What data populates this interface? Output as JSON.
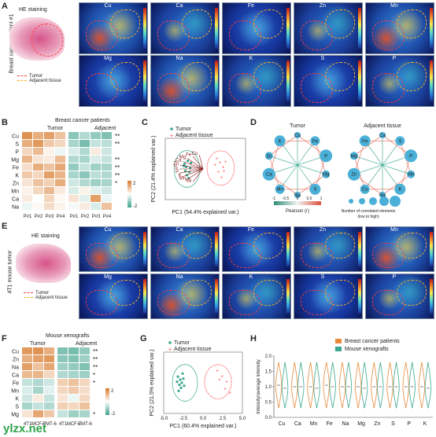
{
  "panels": {
    "A": {
      "label": "A",
      "he_title": "HE staining",
      "side_label": "Breast cancer patient #1",
      "legend": {
        "tumor": "Tumor",
        "adjacent": "Adjacent tissue"
      },
      "maps_row1": [
        "Cu",
        "Ca",
        "Fe",
        "Zn",
        "Mn"
      ],
      "maps_row2": [
        "Mg",
        "Na",
        "K",
        "S",
        "P"
      ]
    },
    "B": {
      "label": "B",
      "title": "Breast cancer patients",
      "group_tumor": "Tumor",
      "group_adjacent": "Adjacent",
      "rows": [
        "Cu",
        "S",
        "P",
        "Mg",
        "Fe",
        "K",
        "Zn",
        "Mn",
        "Ca",
        "Na"
      ],
      "cols": [
        "P#1",
        "P#2",
        "P#3",
        "P#4",
        "P#1",
        "P#2",
        "P#3",
        "P#4"
      ],
      "sig": [
        "**",
        "**",
        "",
        "**",
        "**",
        "**",
        "*",
        "",
        "",
        ""
      ],
      "scale_top": "2",
      "scale_bottom": "-2"
    },
    "C": {
      "label": "C",
      "legend": {
        "tumor": "Tumor",
        "adjacent": "Adjacent tissue"
      },
      "xlabel": "PC1 (54.4% explained var.)",
      "ylabel": "PC2 (21.4% explained var.)"
    },
    "D": {
      "label": "D",
      "title_tumor": "Tumor",
      "title_adjacent": "Adjacent tissue",
      "nodes_tumor": [
        "Cu",
        "Fe",
        "P",
        "Mg",
        "S",
        "Na",
        "Mn",
        "Ca",
        "Zn",
        "K"
      ],
      "nodes_adjacent": [
        "Ca",
        "S",
        "P",
        "Mn",
        "K",
        "Na",
        "Cu",
        "Zn",
        "Mg",
        "Fe"
      ],
      "pearson_label": "Pearson (r)",
      "pearson_ticks": [
        "-1",
        "-0.5",
        "0",
        "0.5",
        "1"
      ],
      "size_label": "Number of correlated elements",
      "size_sub": "(low to high)"
    },
    "E": {
      "label": "E",
      "he_title": "HE staining",
      "side_label": "4T1 mouse tumor",
      "legend": {
        "tumor": "Tumor",
        "adjacent": "Adjacent tissue"
      },
      "maps_row1": [
        "Cu",
        "Ca",
        "Fe",
        "Zn",
        "Mn"
      ],
      "maps_row2": [
        "Mg",
        "Na",
        "K",
        "S",
        "P"
      ]
    },
    "F": {
      "label": "F",
      "title": "Mouse xenografts",
      "group_tumor": "Tumor",
      "group_adjacent": "Adjacent",
      "rows": [
        "Cu",
        "Zn",
        "Na",
        "Ca",
        "Fe",
        "Mn",
        "K",
        "S",
        "Mg"
      ],
      "cols": [
        "4T1",
        "MCF-7",
        "EMT-6",
        "4T1",
        "MCF-7",
        "EMT-6"
      ],
      "sig": [
        "**",
        "**",
        "**",
        "*",
        "*",
        "",
        "",
        "",
        "*"
      ],
      "scale_top": "2",
      "scale_bottom": "-2"
    },
    "G": {
      "label": "G",
      "legend": {
        "tumor": "Tumor",
        "adjacent": "Adjacent tissue"
      },
      "xlabel": "PC1 (60.4% explained var.)",
      "ylabel": "PC2 (21.5% explained var.)",
      "xticks": [
        "-5.0",
        "-2.5",
        "0.0",
        "2.5",
        "5.0"
      ]
    },
    "H": {
      "label": "H",
      "legend": {
        "patients": "Breast cancer patients",
        "mouse": "Mouse xenografts"
      },
      "ylabel": "Intensity/average intensity",
      "yticks": [
        "0.0",
        "0.5",
        "1.0",
        "1.5",
        "2.0"
      ]
    }
  },
  "watermark": "ylzx.net",
  "colors": {
    "tumor": "#ff3a3a",
    "adjacent": "#ffb020",
    "orange": "#e88a3a",
    "teal": "#3aa78f"
  },
  "chart_data": [
    {
      "type": "heatmap",
      "title": "Breast cancer patients",
      "rows": [
        "Cu",
        "S",
        "P",
        "Mg",
        "Fe",
        "K",
        "Zn",
        "Mn",
        "Ca",
        "Na"
      ],
      "cols": [
        "P#1",
        "P#2",
        "P#3",
        "P#4",
        "P#1",
        "P#2",
        "P#3",
        "P#4"
      ],
      "values": [
        [
          1.6,
          1.2,
          1.4,
          0.9,
          -1.2,
          -0.8,
          -1.1,
          -1.3
        ],
        [
          1.2,
          1.5,
          0.8,
          0.6,
          -0.9,
          -1.4,
          -0.6,
          -0.7
        ],
        [
          0.6,
          1.0,
          0.2,
          -0.2,
          -0.4,
          -0.8,
          0.3,
          -0.5
        ],
        [
          1.1,
          0.4,
          0.3,
          1.0,
          -0.8,
          -0.9,
          -0.4,
          -0.6
        ],
        [
          0.5,
          1.2,
          0.9,
          1.3,
          -1.1,
          -0.6,
          -1.0,
          -0.9
        ],
        [
          0.8,
          0.6,
          1.4,
          1.1,
          -0.9,
          -1.2,
          -0.7,
          -0.8
        ],
        [
          0.4,
          0.9,
          0.7,
          1.2,
          -0.5,
          -0.8,
          -1.0,
          -0.9
        ],
        [
          0.2,
          0.6,
          1.0,
          0.3,
          -0.4,
          0.2,
          -0.3,
          -0.5
        ],
        [
          0.3,
          0.0,
          0.6,
          0.1,
          0.4,
          -0.3,
          1.4,
          -0.2
        ],
        [
          -0.2,
          0.1,
          0.5,
          0.2,
          -0.1,
          0.3,
          -0.4,
          0.9
        ]
      ],
      "ylim": [
        -2,
        2
      ]
    },
    {
      "type": "heatmap",
      "title": "Mouse xenografts",
      "rows": [
        "Cu",
        "Zn",
        "Na",
        "Ca",
        "Fe",
        "Mn",
        "K",
        "S",
        "Mg"
      ],
      "cols": [
        "4T1",
        "MCF-7",
        "EMT-6",
        "4T1",
        "MCF-7",
        "EMT-6"
      ],
      "values": [
        [
          1.5,
          1.6,
          1.2,
          -1.3,
          -1.4,
          -1.1
        ],
        [
          1.2,
          1.4,
          1.5,
          -1.2,
          -1.3,
          -1.0
        ],
        [
          1.4,
          0.9,
          1.3,
          -1.0,
          -1.1,
          -1.3
        ],
        [
          1.0,
          1.1,
          0.6,
          -0.8,
          -0.9,
          -1.0
        ],
        [
          -0.6,
          -0.8,
          -0.5,
          0.7,
          0.9,
          0.6
        ],
        [
          -0.4,
          -0.9,
          -0.3,
          0.6,
          0.8,
          0.5
        ],
        [
          -0.5,
          0.3,
          -0.6,
          0.4,
          -0.2,
          0.6
        ],
        [
          -0.9,
          -0.6,
          -0.8,
          0.7,
          0.6,
          0.9
        ],
        [
          0.4,
          1.3,
          0.8,
          -0.6,
          -1.0,
          -0.9
        ]
      ],
      "ylim": [
        -2,
        2
      ]
    },
    {
      "type": "scatter",
      "xlabel": "PC1 (54.4% explained var.)",
      "ylabel": "PC2 (21.4% explained var.)",
      "series": [
        {
          "name": "Tumor",
          "points": [
            [
              -2.6,
              0.5
            ],
            [
              -2.4,
              0.2
            ],
            [
              -2.2,
              0.8
            ],
            [
              -2.0,
              -0.3
            ],
            [
              -2.3,
              -0.6
            ],
            [
              -1.9,
              0.1
            ],
            [
              -2.5,
              -0.2
            ],
            [
              -1.8,
              0.6
            ],
            [
              -2.1,
              -0.9
            ],
            [
              -2.7,
              0.3
            ]
          ]
        },
        {
          "name": "Adjacent tissue",
          "points": [
            [
              1.4,
              1.0
            ],
            [
              1.8,
              0.6
            ],
            [
              2.2,
              0.2
            ],
            [
              1.6,
              -0.3
            ],
            [
              2.0,
              -0.8
            ],
            [
              2.5,
              0.7
            ],
            [
              1.2,
              0.4
            ],
            [
              2.3,
              -0.2
            ]
          ]
        }
      ],
      "loadings": [
        "Cu",
        "Fe",
        "Mg",
        "Ca",
        "Zn",
        "S",
        "P",
        "K",
        "Mn",
        "Na"
      ]
    },
    {
      "type": "scatter",
      "xlabel": "PC1 (60.4% explained var.)",
      "ylabel": "PC2 (21.5% explained var.)",
      "xlim": [
        -5,
        5
      ],
      "series": [
        {
          "name": "Tumor",
          "points": [
            [
              -3.2,
              0.6
            ],
            [
              -2.9,
              0.3
            ],
            [
              -3.0,
              -0.2
            ],
            [
              -2.6,
              0.9
            ],
            [
              -2.8,
              -0.5
            ],
            [
              -3.3,
              0.1
            ],
            [
              -2.5,
              0.4
            ],
            [
              -3.1,
              -0.8
            ],
            [
              -2.7,
              0.0
            ],
            [
              -2.4,
              -0.3
            ]
          ]
        },
        {
          "name": "Adjacent tissue",
          "points": [
            [
              1.8,
              1.2
            ],
            [
              2.4,
              0.6
            ],
            [
              3.0,
              0.1
            ],
            [
              2.8,
              -0.6
            ],
            [
              3.4,
              -1.0
            ],
            [
              2.1,
              0.3
            ]
          ]
        }
      ]
    },
    {
      "type": "violin",
      "categories": [
        "Cu",
        "Ca",
        "Mn",
        "Fe",
        "Na",
        "Mg",
        "Zn",
        "S",
        "P",
        "K"
      ],
      "ylabel": "Intensity/average intensity",
      "ylim": [
        0,
        2
      ],
      "series": [
        {
          "name": "Breast cancer patients",
          "values": [
            1.05,
            1.0,
            1.0,
            1.05,
            1.0,
            1.0,
            1.0,
            1.0,
            1.0,
            1.0
          ]
        },
        {
          "name": "Mouse xenografts",
          "values": [
            0.95,
            1.0,
            0.95,
            1.0,
            1.0,
            0.95,
            1.0,
            1.0,
            1.0,
            0.95
          ]
        }
      ]
    }
  ]
}
